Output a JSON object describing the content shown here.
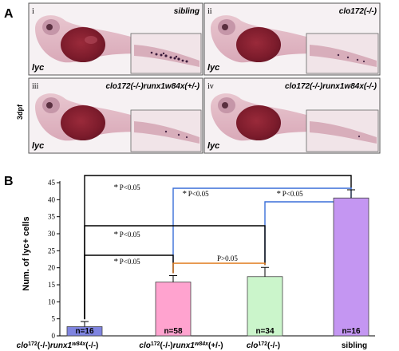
{
  "panel_a": {
    "letter": "A",
    "stage": "3dpf",
    "probe": "lyc",
    "panels": [
      {
        "roman": "i",
        "condition": "sibling",
        "staining": "strong"
      },
      {
        "roman": "ii",
        "condition": "clo172(-/-)",
        "staining": "moderate"
      },
      {
        "roman": "iii",
        "condition": "clo172(-/-)runx1w84x(+/-)",
        "staining": "moderate"
      },
      {
        "roman": "iv",
        "condition": "clo172(-/-)runx1w84x(-/-)",
        "staining": "weak"
      }
    ]
  },
  "panel_b": {
    "letter": "B",
    "ylabel": "Num. of lyc+ cells",
    "yticks": [
      "0",
      "5",
      "10",
      "15",
      "20",
      "25",
      "30",
      "35",
      "40",
      "45"
    ]
  },
  "chart_data": {
    "type": "bar",
    "categories": [
      "clo172(-/-)runx1w84x(-/-)",
      "clo172(-/-)runx1w84x(+/-)",
      "clo172(-/-)",
      "sibling"
    ],
    "values": [
      2.7,
      15.8,
      17.4,
      40.5
    ],
    "errors": [
      1.5,
      1.9,
      2.7,
      2.4
    ],
    "n_labels": [
      "n=16",
      "n=58",
      "n=34",
      "n=16"
    ],
    "colors": [
      "#7f84e0",
      "#ffa3cf",
      "#cbf5cb",
      "#c496f2"
    ],
    "ylim": [
      0,
      45
    ],
    "ylabel": "Num. of lyc+ cells",
    "comparisons": [
      {
        "a": 0,
        "b": 3,
        "label": "P<0.05",
        "asterisk": "*",
        "color": "#000000"
      },
      {
        "a": 1,
        "b": 3,
        "label": "P<0.05",
        "asterisk": "*",
        "color": "#3a6fd8"
      },
      {
        "a": 2,
        "b": 3,
        "label": "P<0.05",
        "asterisk": "*",
        "color": "#3a6fd8"
      },
      {
        "a": 0,
        "b": 2,
        "label": "P<0.05",
        "asterisk": "*",
        "color": "#000000"
      },
      {
        "a": 0,
        "b": 1,
        "label": "P<0.05",
        "asterisk": "*",
        "color": "#000000"
      },
      {
        "a": 1,
        "b": 2,
        "label": "P>0.05",
        "asterisk": "",
        "color": "#e07a1a"
      }
    ]
  }
}
